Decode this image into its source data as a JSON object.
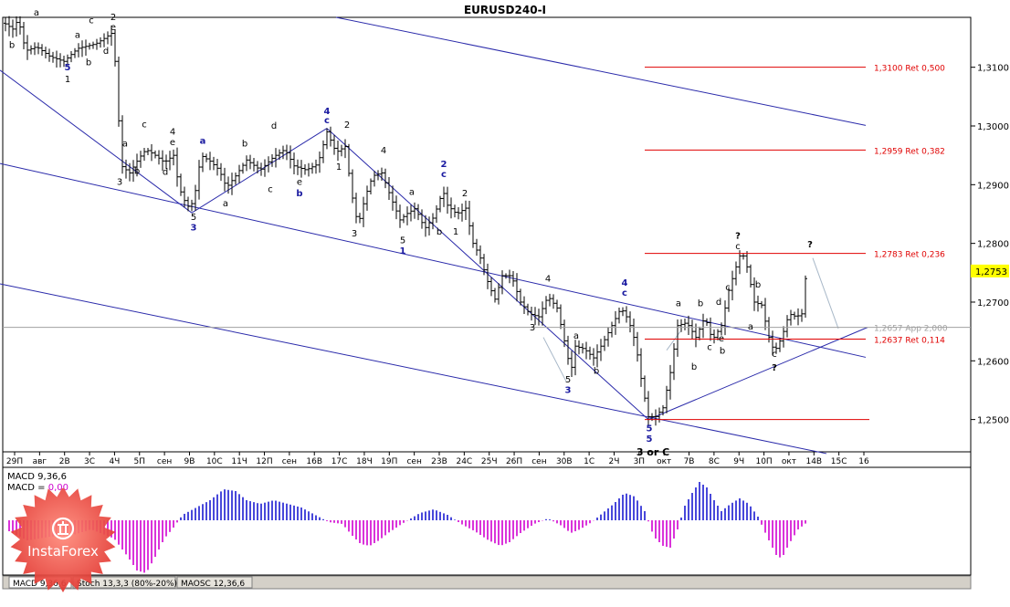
{
  "window": {
    "title": "EURUSD240-I"
  },
  "chart_data": {
    "type": "candlestick",
    "title": "EURUSD240-I",
    "y_ticks": [
      "1,3100",
      "1,3000",
      "1,2900",
      "1,2800",
      "1,2700",
      "1,2600",
      "1,2500"
    ],
    "ylim": [
      1.2445,
      1.3185
    ],
    "current_price": "1,2753",
    "x_ticks": [
      "29П",
      "авг",
      "2В",
      "3С",
      "4Ч",
      "5П",
      "сен",
      "9В",
      "10С",
      "11Ч",
      "12П",
      "сен",
      "16В",
      "17С",
      "18Ч",
      "19П",
      "сен",
      "23В",
      "24С",
      "25Ч",
      "26П",
      "сен",
      "30В",
      "1С",
      "2Ч",
      "3П",
      "окт",
      "7В",
      "8С",
      "9Ч",
      "10П",
      "окт",
      "14В",
      "15С",
      "16"
    ],
    "fib_levels": [
      {
        "label": "1,3100 Ret 0,500",
        "value": 1.31,
        "color": "#e00000"
      },
      {
        "label": "1,2959 Ret 0,382",
        "value": 1.2959,
        "color": "#e00000"
      },
      {
        "label": "1,2783 Ret 0,236",
        "value": 1.2783,
        "color": "#e00000"
      },
      {
        "label": "1,2657 App 2,000",
        "value": 1.2657,
        "color": "#a0a0a0"
      },
      {
        "label": "1,2637 Ret 0,114",
        "value": 1.2637,
        "color": "#e00000"
      }
    ],
    "wave_labels": [
      {
        "text": "5",
        "color": "#1a1aa0",
        "x": 74,
        "y": 1.3095
      },
      {
        "text": "1",
        "color": "#000000",
        "x": 74,
        "y": 1.3075
      },
      {
        "text": "b",
        "color": "#000000",
        "x": 13,
        "y": 1.3133
      },
      {
        "text": "a",
        "color": "#000000",
        "x": 40,
        "y": 1.3188
      },
      {
        "text": "c",
        "color": "#000000",
        "x": 100,
        "y": 1.3175
      },
      {
        "text": "2",
        "color": "#000000",
        "x": 124,
        "y": 1.318
      },
      {
        "text": "e",
        "color": "#000000",
        "x": 124,
        "y": 1.3163
      },
      {
        "text": "a",
        "color": "#000000",
        "x": 85,
        "y": 1.315
      },
      {
        "text": "b",
        "color": "#000000",
        "x": 97,
        "y": 1.3103
      },
      {
        "text": "d",
        "color": "#000000",
        "x": 116,
        "y": 1.3123
      },
      {
        "text": "a",
        "color": "#000000",
        "x": 137,
        "y": 1.2965
      },
      {
        "text": "c",
        "color": "#000000",
        "x": 158,
        "y": 1.2998
      },
      {
        "text": "b",
        "color": "#000000",
        "x": 150,
        "y": 1.2918
      },
      {
        "text": "d",
        "color": "#000000",
        "x": 181,
        "y": 1.2917
      },
      {
        "text": "4",
        "color": "#000000",
        "x": 189,
        "y": 1.2985
      },
      {
        "text": "e",
        "color": "#000000",
        "x": 189,
        "y": 1.2967
      },
      {
        "text": "3",
        "color": "#000000",
        "x": 131,
        "y": 1.29
      },
      {
        "text": "a",
        "color": "#1a1aa0",
        "x": 222,
        "y": 1.297
      },
      {
        "text": "5",
        "color": "#000000",
        "x": 212,
        "y": 1.284
      },
      {
        "text": "3",
        "color": "#1a1aa0",
        "x": 212,
        "y": 1.2822
      },
      {
        "text": "a",
        "color": "#000000",
        "x": 247,
        "y": 1.2863
      },
      {
        "text": "b",
        "color": "#000000",
        "x": 268,
        "y": 1.2965
      },
      {
        "text": "c",
        "color": "#000000",
        "x": 296,
        "y": 1.2887
      },
      {
        "text": "d",
        "color": "#000000",
        "x": 300,
        "y": 1.2995
      },
      {
        "text": "e",
        "color": "#000000",
        "x": 328,
        "y": 1.29
      },
      {
        "text": "b",
        "color": "#1a1aa0",
        "x": 328,
        "y": 1.288
      },
      {
        "text": "4",
        "color": "#1a1aa0",
        "x": 358,
        "y": 1.302
      },
      {
        "text": "c",
        "color": "#1a1aa0",
        "x": 358,
        "y": 1.3005
      },
      {
        "text": "2",
        "color": "#000000",
        "x": 380,
        "y": 1.2997
      },
      {
        "text": "1",
        "color": "#000000",
        "x": 371,
        "y": 1.2925
      },
      {
        "text": "3",
        "color": "#000000",
        "x": 388,
        "y": 1.2812
      },
      {
        "text": "4",
        "color": "#000000",
        "x": 420,
        "y": 1.2953
      },
      {
        "text": "5",
        "color": "#000000",
        "x": 441,
        "y": 1.28
      },
      {
        "text": "1",
        "color": "#1a1aa0",
        "x": 441,
        "y": 1.2782
      },
      {
        "text": "a",
        "color": "#000000",
        "x": 451,
        "y": 1.2883
      },
      {
        "text": "b",
        "color": "#000000",
        "x": 481,
        "y": 1.2815
      },
      {
        "text": "1",
        "color": "#000000",
        "x": 499,
        "y": 1.2815
      },
      {
        "text": "2",
        "color": "#1a1aa0",
        "x": 486,
        "y": 1.293
      },
      {
        "text": "c",
        "color": "#1a1aa0",
        "x": 486,
        "y": 1.2913
      },
      {
        "text": "2",
        "color": "#000000",
        "x": 509,
        "y": 1.288
      },
      {
        "text": "4",
        "color": "#000000",
        "x": 600,
        "y": 1.2735
      },
      {
        "text": "3",
        "color": "#000000",
        "x": 583,
        "y": 1.2652
      },
      {
        "text": "a",
        "color": "#000000",
        "x": 631,
        "y": 1.2638
      },
      {
        "text": "5",
        "color": "#000000",
        "x": 622,
        "y": 1.2563
      },
      {
        "text": "3",
        "color": "#1a1aa0",
        "x": 622,
        "y": 1.2545
      },
      {
        "text": "b",
        "color": "#000000",
        "x": 653,
        "y": 1.2578
      },
      {
        "text": "4",
        "color": "#1a1aa0",
        "x": 684,
        "y": 1.2728
      },
      {
        "text": "c",
        "color": "#1a1aa0",
        "x": 684,
        "y": 1.2711
      },
      {
        "text": "5",
        "color": "#1a1aa0",
        "x": 711,
        "y": 1.248
      },
      {
        "text": "5",
        "color": "#1a1aa0",
        "x": 711,
        "y": 1.2462
      },
      {
        "text": "3 or C",
        "color": "#000000",
        "x": 715,
        "y": 1.2439
      },
      {
        "text": "a",
        "color": "#000000",
        "x": 743,
        "y": 1.2693
      },
      {
        "text": "b",
        "color": "#000000",
        "x": 760,
        "y": 1.2585
      },
      {
        "text": "b",
        "color": "#000000",
        "x": 767,
        "y": 1.2693
      },
      {
        "text": "c",
        "color": "#000000",
        "x": 777,
        "y": 1.2618
      },
      {
        "text": "d",
        "color": "#000000",
        "x": 787,
        "y": 1.2695
      },
      {
        "text": "b",
        "color": "#000000",
        "x": 791,
        "y": 1.2612
      },
      {
        "text": "e",
        "color": "#000000",
        "x": 790,
        "y": 1.2633
      },
      {
        "text": "c",
        "color": "#000000",
        "x": 797,
        "y": 1.272
      },
      {
        "text": "?",
        "color": "#000000",
        "x": 808,
        "y": 1.2808
      },
      {
        "text": "c",
        "color": "#000000",
        "x": 808,
        "y": 1.279
      },
      {
        "text": "b",
        "color": "#000000",
        "x": 830,
        "y": 1.2725
      },
      {
        "text": "a",
        "color": "#000000",
        "x": 822,
        "y": 1.2653
      },
      {
        "text": "c",
        "color": "#000000",
        "x": 848,
        "y": 1.2607
      },
      {
        "text": "?",
        "color": "#000000",
        "x": 848,
        "y": 1.2583
      },
      {
        "text": "?",
        "color": "#000000",
        "x": 887,
        "y": 1.2793
      }
    ],
    "trend_lines": [
      {
        "color": "#2a2aaa",
        "x1": 368,
        "y1": 1.3185,
        "x2": 948,
        "y2": 1.3001
      },
      {
        "color": "#2a2aaa",
        "x1": 0,
        "y1": 1.2936,
        "x2": 948,
        "y2": 1.2606
      },
      {
        "color": "#2a2aaa",
        "x1": 0,
        "y1": 1.2731,
        "x2": 905,
        "y2": 1.2442
      },
      {
        "color": "#2a2aaa",
        "x1": 0,
        "y1": 1.3095,
        "x2": 210,
        "y2": 1.2852
      },
      {
        "color": "#2a2aaa",
        "x1": 210,
        "y1": 1.2852,
        "x2": 358,
        "y2": 1.2996
      },
      {
        "color": "#2a2aaa",
        "x1": 358,
        "y1": 1.2996,
        "x2": 710,
        "y2": 1.25
      },
      {
        "color": "#2a2aaa",
        "x1": 710,
        "y1": 1.25,
        "x2": 950,
        "y2": 1.2657
      }
    ],
    "macd": {
      "title": "MACD 9,36,6",
      "label": "MACD = ",
      "value": "0,00",
      "value_color": "#cc00cc",
      "pos_color": "#1a1ad0",
      "neg_color": "#d000d0"
    },
    "indicator_tabs": [
      "MACD 9,36,6",
      "Stoch 13,3,3 (80%-20%)",
      "MAOSC 12,36,6"
    ],
    "logo_text": "InstaForex"
  }
}
